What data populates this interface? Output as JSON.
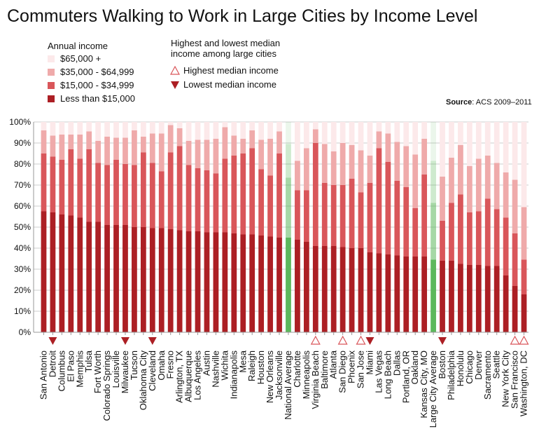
{
  "chart_data": {
    "type": "bar",
    "stacked": true,
    "title": "Commuters Walking to Work in Large Cities by Income Level",
    "xlabel": "",
    "ylabel": "",
    "ylim": [
      0,
      100
    ],
    "yticks": [
      "0%",
      "10%",
      "20%",
      "30%",
      "40%",
      "50%",
      "60%",
      "70%",
      "80%",
      "90%",
      "100%"
    ],
    "grid": "horizontal",
    "source_label": "Source",
    "source_text": ": ACS 2009–2011",
    "legend": {
      "title": "Annual income",
      "entries": [
        "$65,000 +",
        "$35,000 - $64,999",
        "$15,000 - $34,999",
        "Less than $15,000"
      ]
    },
    "marker_legend": {
      "title_line1": "Highest and lowest median",
      "title_line2": "income among large cities",
      "highest_label": "Highest median income",
      "lowest_label": "Lowest median income"
    },
    "categories": [
      "San Antonio",
      "Detroit",
      "Columbus",
      "El Paso",
      "Memphis",
      "Tulsa",
      "Fort Worth",
      "Colorado Springs",
      "Louisville",
      "Milwaukee",
      "Tucson",
      "Oklahoma City",
      "Cleveland",
      "Omaha",
      "Fresno",
      "Arlington, TX",
      "Albuquerque",
      "Los Angeles",
      "Austin",
      "Nashville",
      "Wichita",
      "Indianapolis",
      "Mesa",
      "Raleigh",
      "Houston",
      "New Orleans",
      "Jacksonville",
      "National Average",
      "Charlotte",
      "Minneapolis",
      "Virginia Beach",
      "Baltimore",
      "Atlanta",
      "San Diego",
      "Phoenix",
      "San Jose",
      "Miami",
      "Las Vegas",
      "Long Beach",
      "Dallas",
      "Portland, OR",
      "Oakland",
      "Kansas City, MO",
      "Large City Average",
      "Boston",
      "Philadelphia",
      "Honolulu",
      "Chicago",
      "Denver",
      "Sacramento",
      "Seattle",
      "New York City",
      "San Francisco",
      "Washington, DC"
    ],
    "highlight_categories": [
      "National Average",
      "Large City Average"
    ],
    "highlight_color": "#5cb85c",
    "markers": {
      "highest": [
        "Virginia Beach",
        "San Diego",
        "San Jose",
        "San Francisco",
        "Washington, DC"
      ],
      "lowest": [
        "Detroit",
        "Milwaukee",
        "Cleveland",
        "Miami",
        "Boston"
      ]
    },
    "series": [
      {
        "name": "Less than $15,000",
        "color": "#ac1f24",
        "values": [
          57.5,
          57,
          56,
          55.5,
          54.5,
          52.5,
          52.5,
          51,
          51,
          51,
          50,
          50,
          49.5,
          49.5,
          49,
          48.5,
          48,
          48,
          47.5,
          47.5,
          47.5,
          47,
          46.5,
          46.5,
          46,
          45.5,
          45,
          45,
          44,
          43,
          41,
          41,
          41,
          40.5,
          40,
          40,
          38,
          37.5,
          37,
          36.5,
          36,
          36,
          36,
          34.5,
          34,
          34,
          32.5,
          32,
          32,
          31.5,
          31.5,
          27,
          22,
          18
        ]
      },
      {
        "name": "$15,000 - $34,999",
        "color": "#d9565a",
        "values": [
          27.5,
          26.5,
          26,
          31.5,
          28,
          34.5,
          28,
          28.5,
          31,
          29,
          29.5,
          35.5,
          31,
          27,
          36.5,
          40,
          31.5,
          30,
          29.5,
          28,
          35,
          37,
          38.5,
          41,
          31.5,
          29,
          40,
          28.5,
          23.5,
          24.5,
          49,
          30,
          29,
          29.5,
          33,
          26.5,
          33,
          50,
          44,
          35.5,
          33,
          23,
          39,
          27,
          19,
          27.5,
          33,
          25,
          25.5,
          32,
          27,
          27.5,
          25,
          16.5
        ]
      },
      {
        "name": "$35,000 - $64,999",
        "color": "#efaaaa",
        "values": [
          11,
          10,
          12,
          7,
          11.5,
          8.5,
          10.5,
          13.5,
          10.5,
          12.5,
          16.5,
          7.5,
          14,
          18,
          13,
          8.5,
          11.5,
          13.5,
          14.5,
          16.5,
          15,
          9.5,
          7,
          8.5,
          14,
          17.5,
          10.5,
          16,
          14,
          20,
          6.5,
          18.5,
          16,
          20,
          16,
          20,
          13,
          8,
          13.5,
          18.5,
          19.5,
          25.5,
          17,
          20,
          21,
          21.5,
          23.5,
          22,
          25,
          20.5,
          22,
          21.5,
          25.5,
          25
        ]
      },
      {
        "name": "$65,000 +",
        "color": "#fce9ea",
        "values": [
          4,
          6.5,
          6,
          6,
          6,
          4.5,
          9,
          7,
          7.5,
          7.5,
          4,
          7,
          5.5,
          5.5,
          1.5,
          3,
          9,
          8.5,
          8.5,
          8,
          2.5,
          6.5,
          8,
          4,
          8.5,
          8,
          4.5,
          10.5,
          18.5,
          12.5,
          3.5,
          10.5,
          14,
          10,
          11,
          13.5,
          16,
          4.5,
          5.5,
          9.5,
          11.5,
          15.5,
          8,
          18.5,
          26,
          17,
          11,
          21,
          17.5,
          16,
          19.5,
          24,
          27.5,
          40.5
        ]
      }
    ]
  }
}
